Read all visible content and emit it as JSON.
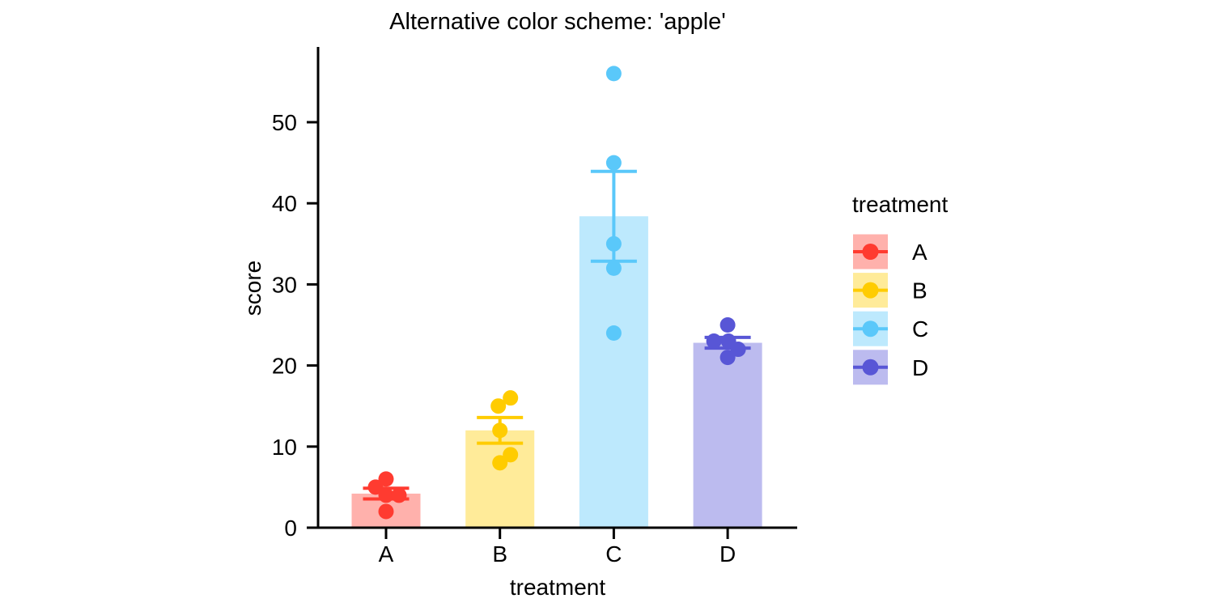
{
  "chart_data": {
    "type": "bar",
    "title": "Alternative color scheme: 'apple'",
    "xlabel": "treatment",
    "ylabel": "score",
    "categories": [
      "A",
      "B",
      "C",
      "D"
    ],
    "y_ticks": [
      0,
      10,
      20,
      30,
      40,
      50
    ],
    "ylim": [
      0,
      59
    ],
    "grid": false,
    "legend_position": "right",
    "legend_title": "treatment",
    "fill_alpha": 0.4,
    "bar_statistic": "mean",
    "error_statistic": "sem",
    "series": [
      {
        "name": "A",
        "color": "#FF3B30",
        "mean": 4.2,
        "sem": 0.66,
        "points": [
          {
            "value": 6,
            "dx": 0
          },
          {
            "value": 5,
            "dx": -13
          },
          {
            "value": 4,
            "dx": 0
          },
          {
            "value": 4,
            "dx": 16
          },
          {
            "value": 2,
            "dx": 0
          }
        ]
      },
      {
        "name": "B",
        "color": "#FFCC00",
        "mean": 12,
        "sem": 1.58,
        "points": [
          {
            "value": 16,
            "dx": 13
          },
          {
            "value": 15,
            "dx": -2
          },
          {
            "value": 12,
            "dx": 0
          },
          {
            "value": 9,
            "dx": 13
          },
          {
            "value": 8,
            "dx": 0
          }
        ]
      },
      {
        "name": "C",
        "color": "#5AC8FA",
        "mean": 38.4,
        "sem": 5.54,
        "points": [
          {
            "value": 56,
            "dx": 0
          },
          {
            "value": 45,
            "dx": 0
          },
          {
            "value": 35,
            "dx": 0
          },
          {
            "value": 32,
            "dx": 0
          },
          {
            "value": 24,
            "dx": 0
          }
        ]
      },
      {
        "name": "D",
        "color": "#5856D6",
        "mean": 22.8,
        "sem": 0.66,
        "points": [
          {
            "value": 25,
            "dx": 0
          },
          {
            "value": 23,
            "dx": -17
          },
          {
            "value": 23,
            "dx": 1
          },
          {
            "value": 22,
            "dx": 13
          },
          {
            "value": 21,
            "dx": 0
          }
        ]
      }
    ]
  }
}
